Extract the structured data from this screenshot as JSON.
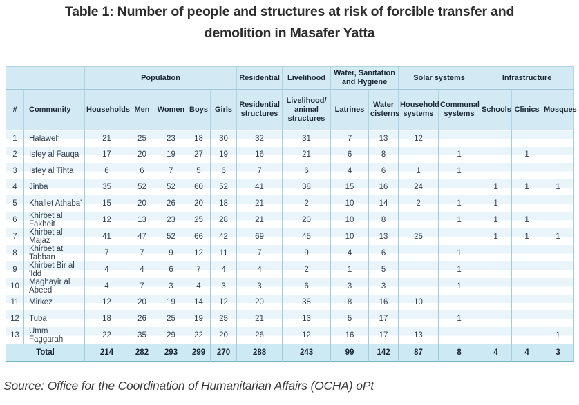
{
  "title": {
    "line1": "Table 1: Number of people and structures at risk of forcible transfer and",
    "line2": "demolition in Masafer Yatta"
  },
  "source": "Source: Office for the Coordination of Humanitarian Affairs (OCHA) oPt",
  "colors": {
    "header_bg": "#d3eaf5",
    "total_row_bg": "#cde9f4",
    "stripe_blue": "#e9f4fb",
    "stripe_white": "#ffffff",
    "border_teal": "#7db5c3",
    "cell_border": "#a2ccd9",
    "header_text": "#1b2936",
    "body_text": "#33404e",
    "title_text": "#2d2d2d"
  },
  "table": {
    "group_headers": [
      {
        "label": "",
        "span": 2
      },
      {
        "label": "Population",
        "span": 5
      },
      {
        "label": "Residential",
        "span": 1
      },
      {
        "label": "Livelihood",
        "span": 1
      },
      {
        "label": "Water, Sanitation and Hygiene",
        "span": 2
      },
      {
        "label": "Solar systems",
        "span": 2
      },
      {
        "label": "Infrastructure",
        "span": 3
      }
    ],
    "columns": [
      "#",
      "Community",
      "Households",
      "Men",
      "Women",
      "Boys",
      "Girls",
      "Residential structures",
      "Livelihood/ animal structures",
      "Latrines",
      "Water cisterns",
      "Household systems",
      "Communal systems",
      "Schools",
      "Clinics",
      "Mosques"
    ],
    "rows": [
      [
        "1",
        "Halaweh",
        "21",
        "25",
        "23",
        "18",
        "30",
        "32",
        "31",
        "7",
        "13",
        "12",
        "",
        "",
        "",
        ""
      ],
      [
        "2",
        "Isfey al Fauqa",
        "17",
        "20",
        "19",
        "27",
        "19",
        "16",
        "21",
        "6",
        "8",
        "",
        "1",
        "",
        "1",
        ""
      ],
      [
        "3",
        "Isfey al Tihta",
        "6",
        "6",
        "7",
        "5",
        "6",
        "7",
        "6",
        "4",
        "6",
        "1",
        "1",
        "",
        "",
        ""
      ],
      [
        "4",
        "Jinba",
        "35",
        "52",
        "52",
        "60",
        "52",
        "41",
        "38",
        "15",
        "16",
        "24",
        "",
        "1",
        "1",
        "1"
      ],
      [
        "5",
        "Khallet Athaba'",
        "15",
        "20",
        "26",
        "20",
        "18",
        "21",
        "2",
        "10",
        "14",
        "2",
        "1",
        "1",
        "",
        ""
      ],
      [
        "6",
        "Khirbet al Fakheit",
        "12",
        "13",
        "23",
        "25",
        "28",
        "21",
        "20",
        "10",
        "8",
        "",
        "1",
        "1",
        "1",
        ""
      ],
      [
        "7",
        "Khirbet al Majaz",
        "41",
        "47",
        "52",
        "66",
        "42",
        "69",
        "45",
        "10",
        "13",
        "25",
        "",
        "1",
        "1",
        "1"
      ],
      [
        "8",
        "Khirbet at Tabban",
        "7",
        "7",
        "9",
        "12",
        "11",
        "7",
        "9",
        "4",
        "6",
        "",
        "1",
        "",
        "",
        ""
      ],
      [
        "9",
        "Khirbet Bir al 'Idd",
        "4",
        "4",
        "6",
        "7",
        "4",
        "4",
        "2",
        "1",
        "5",
        "",
        "1",
        "",
        "",
        ""
      ],
      [
        "10",
        "Maghayir al Abeed",
        "4",
        "7",
        "3",
        "4",
        "3",
        "3",
        "6",
        "3",
        "3",
        "",
        "1",
        "",
        "",
        ""
      ],
      [
        "11",
        "Mirkez",
        "12",
        "20",
        "19",
        "14",
        "12",
        "20",
        "38",
        "8",
        "16",
        "10",
        "",
        "",
        "",
        ""
      ],
      [
        "12",
        "Tuba",
        "18",
        "26",
        "25",
        "19",
        "25",
        "21",
        "13",
        "5",
        "17",
        "",
        "1",
        "",
        "",
        ""
      ],
      [
        "13",
        "Umm Faggarah",
        "22",
        "35",
        "29",
        "22",
        "20",
        "26",
        "12",
        "16",
        "17",
        "13",
        "",
        "",
        "",
        "1"
      ]
    ],
    "total": {
      "label": "Total",
      "values": [
        "214",
        "282",
        "293",
        "299",
        "270",
        "288",
        "243",
        "99",
        "142",
        "87",
        "8",
        "4",
        "4",
        "3"
      ]
    }
  }
}
